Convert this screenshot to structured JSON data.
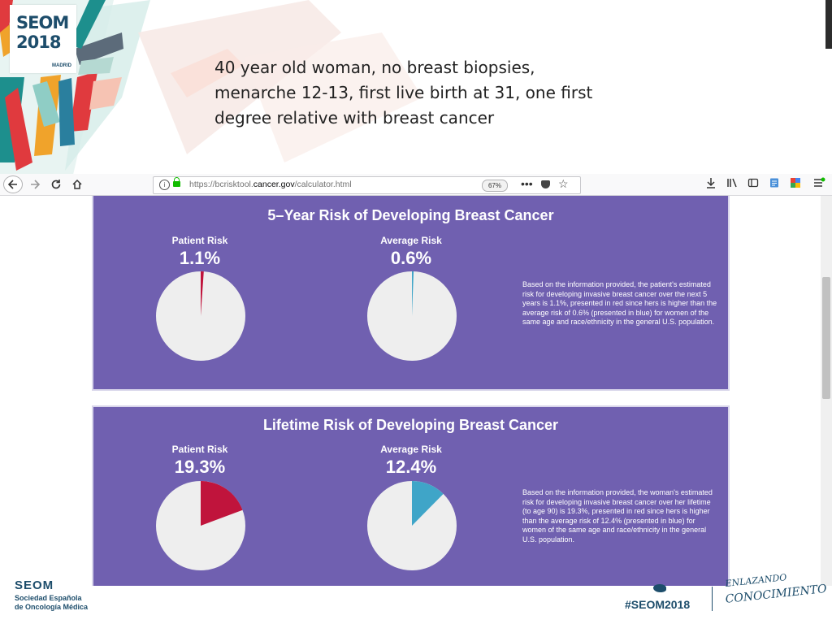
{
  "slide": {
    "logo_text": "SEOM",
    "logo_year": "2018",
    "logo_city": "MADRID",
    "case_description": "40 year old woman, no breast biopsies, menarche 12-13, first live birth at 31, one first degree relative with breast cancer",
    "footer_org_line1": "Sociedad Española",
    "footer_org_line2": "de Oncología Médica",
    "footer_brand": "SEOM",
    "hashtag": "#SEOM2018",
    "tagline": "CONOCIMIENTO",
    "tagline_top": "ENLAZANDO"
  },
  "browser": {
    "url_prefix": "https://bcrisktool.",
    "url_domain": "cancer.gov",
    "url_suffix": "/calculator.html",
    "zoom": "67%",
    "more_label": "•••",
    "icons": [
      "back-icon",
      "forward-icon",
      "reload-icon",
      "home-icon",
      "info-icon",
      "lock-icon",
      "pocket-icon",
      "star-icon",
      "download-icon",
      "library-icon",
      "sidebar-icon",
      "reader-icon",
      "extension-icon",
      "menu-icon"
    ]
  },
  "colors": {
    "panel": "#7060b0",
    "patient_risk": "#c0143c",
    "average_risk": "#3fa5c8",
    "pie_base": "#eeeeee"
  },
  "chart_data": [
    {
      "type": "pie",
      "title": "5–Year Risk of Developing Breast Cancer",
      "series": [
        {
          "name": "Patient Risk",
          "label": "1.1%",
          "value": 1.1,
          "color": "#c0143c"
        },
        {
          "name": "Average Risk",
          "label": "0.6%",
          "value": 0.6,
          "color": "#3fa5c8"
        }
      ],
      "explanation": "Based on the information provided, the patient's estimated risk for developing invasive breast cancer over the next 5 years is 1.1%, presented in red since hers is higher than the average risk of 0.6% (presented in blue) for women of the same age and race/ethnicity in the general U.S. population."
    },
    {
      "type": "pie",
      "title": "Lifetime Risk of Developing Breast Cancer",
      "series": [
        {
          "name": "Patient Risk",
          "label": "19.3%",
          "value": 19.3,
          "color": "#c0143c"
        },
        {
          "name": "Average Risk",
          "label": "12.4%",
          "value": 12.4,
          "color": "#3fa5c8"
        }
      ],
      "explanation": "Based on the information provided, the woman's estimated risk for developing invasive breast cancer over her lifetime (to age 90) is 19.3%, presented in red since hers is higher than the average risk of 12.4% (presented in blue) for women of the same age and race/ethnicity in the general U.S. population."
    }
  ]
}
